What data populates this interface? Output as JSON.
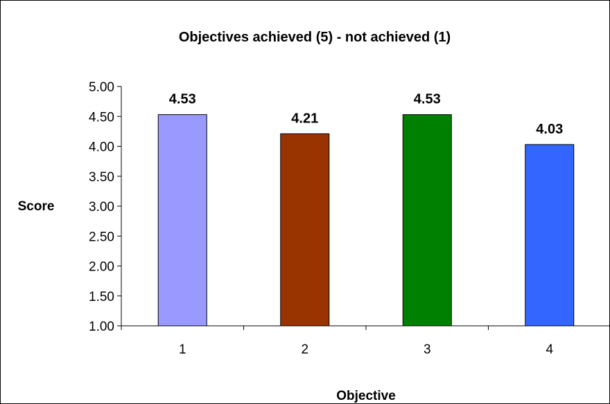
{
  "chart_data": {
    "type": "bar",
    "title": "Objectives achieved (5) - not achieved (1)",
    "xlabel": "Objective",
    "ylabel": "Score",
    "categories": [
      "1",
      "2",
      "3",
      "4"
    ],
    "values": [
      4.53,
      4.21,
      4.53,
      4.03
    ],
    "data_labels": [
      "4.53",
      "4.21",
      "4.53",
      "4.03"
    ],
    "y_ticks": [
      "1.00",
      "1.50",
      "2.00",
      "2.50",
      "3.00",
      "3.50",
      "4.00",
      "4.50",
      "5.00"
    ],
    "ylim": [
      1,
      5
    ],
    "grid": false,
    "legend": "none",
    "bar_colors": [
      "#9999ff",
      "#993300",
      "#008000",
      "#3366ff"
    ],
    "bar_edge_color": "#000000"
  }
}
